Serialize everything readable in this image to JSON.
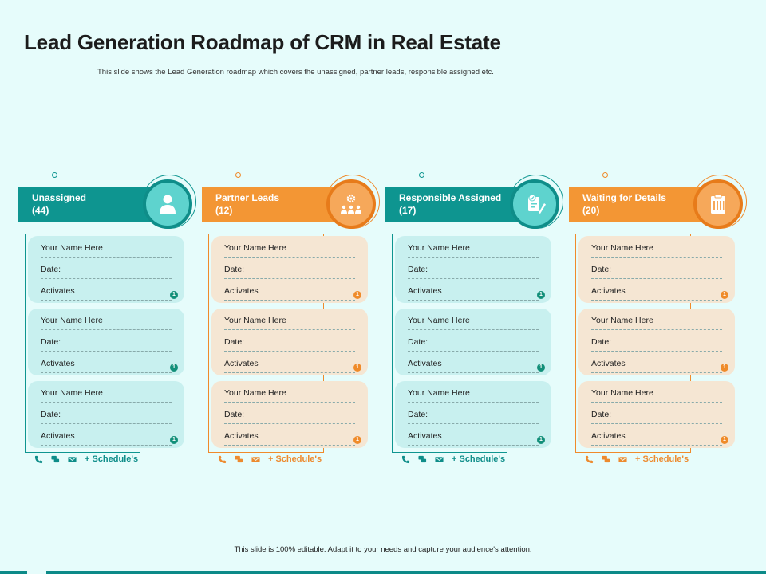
{
  "title": "Lead Generation Roadmap of CRM in Real Estate",
  "subtitle": "This slide shows the Lead Generation roadmap which covers the unassigned, partner leads, responsible assigned etc.",
  "footer": "This slide is 100% editable. Adapt it to your needs and capture your audience's attention.",
  "colors": {
    "teal": "#0e9590",
    "orange": "#f39634",
    "background": "#e6fcfb"
  },
  "columns": [
    {
      "header_line1": "Unassigned",
      "header_line2": "(44)",
      "icon": "person-icon",
      "cards": [
        {
          "name": "Your Name Here",
          "date": "Date:",
          "activates": "Activates",
          "badge": "1"
        },
        {
          "name": "Your Name Here",
          "date": "Date:",
          "activates": "Activates",
          "badge": "1"
        },
        {
          "name": "Your Name Here",
          "date": "Date:",
          "activates": "Activates",
          "badge": "1"
        }
      ],
      "schedule": "+ Schedule's"
    },
    {
      "header_line1": "Partner Leads",
      "header_line2": "(12)",
      "icon": "team-gear-icon",
      "cards": [
        {
          "name": "Your Name Here",
          "date": "Date:",
          "activates": "Activates",
          "badge": "1"
        },
        {
          "name": "Your Name Here",
          "date": "Date:",
          "activates": "Activates",
          "badge": "1"
        },
        {
          "name": "Your Name Here",
          "date": "Date:",
          "activates": "Activates",
          "badge": "1"
        }
      ],
      "schedule": "+ Schedule's"
    },
    {
      "header_line1": "Responsible Assigned",
      "header_line2": "(17)",
      "icon": "document-check-icon",
      "cards": [
        {
          "name": "Your Name Here",
          "date": "Date:",
          "activates": "Activates",
          "badge": "1"
        },
        {
          "name": "Your Name Here",
          "date": "Date:",
          "activates": "Activates",
          "badge": "1"
        },
        {
          "name": "Your Name Here",
          "date": "Date:",
          "activates": "Activates",
          "badge": "1"
        }
      ],
      "schedule": "+ Schedule's"
    },
    {
      "header_line1": "Waiting for Details",
      "header_line2": "(20)",
      "icon": "clipboard-icon",
      "cards": [
        {
          "name": "Your Name Here",
          "date": "Date:",
          "activates": "Activates",
          "badge": "1"
        },
        {
          "name": "Your Name Here",
          "date": "Date:",
          "activates": "Activates",
          "badge": "1"
        },
        {
          "name": "Your Name Here",
          "date": "Date:",
          "activates": "Activates",
          "badge": "1"
        }
      ],
      "schedule": "+ Schedule's"
    }
  ]
}
